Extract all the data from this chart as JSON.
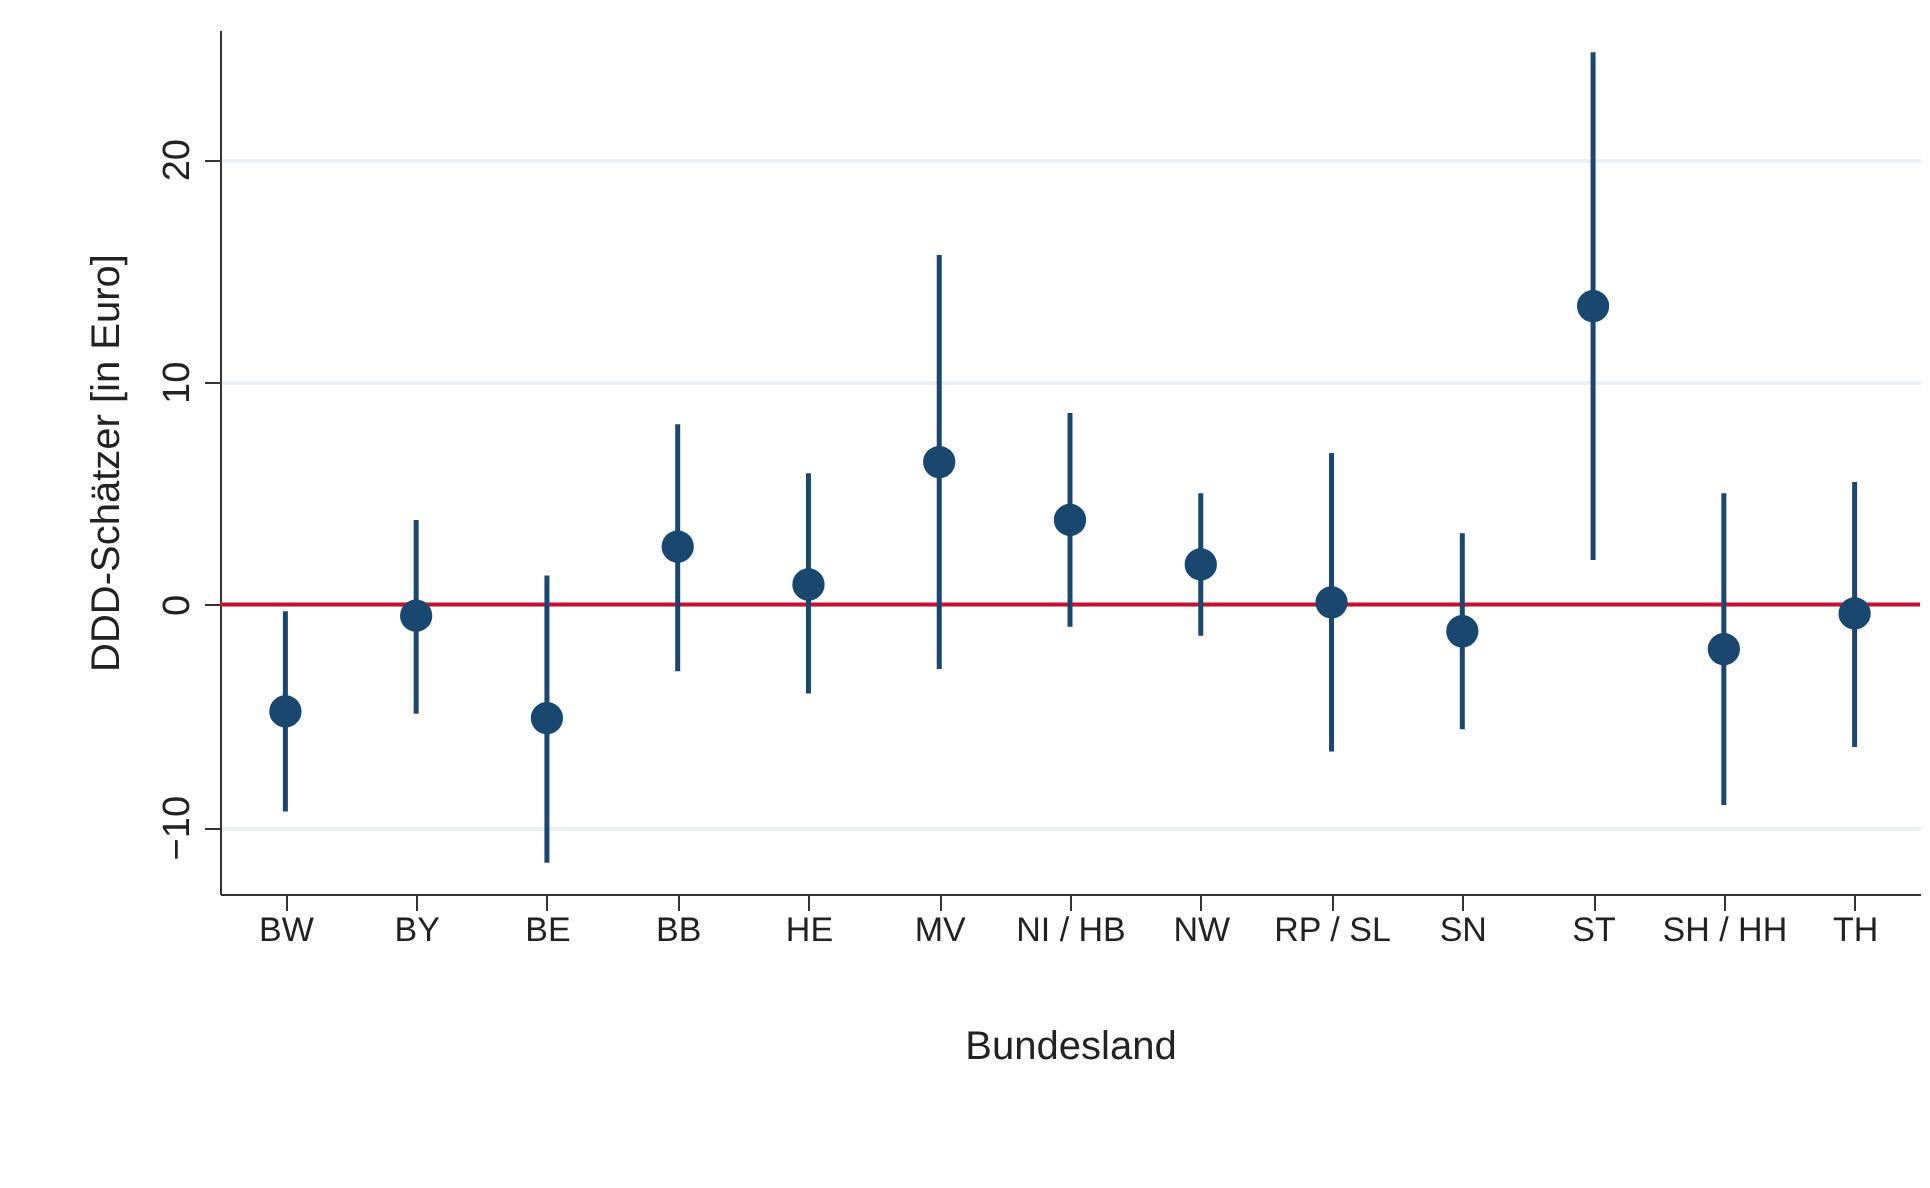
{
  "chart_data": {
    "type": "scatter",
    "xlabel": "Bundesland",
    "ylabel": "DDD-Schätzer [in Euro]",
    "categories": [
      "BW",
      "BY",
      "BE",
      "BB",
      "HE",
      "MV",
      "NI / HB",
      "NW",
      "RP / SL",
      "SN",
      "ST",
      "SH / HH",
      "TH"
    ],
    "series": [
      {
        "color": "#1a476f",
        "values": [
          -4.8,
          -0.5,
          -5.1,
          2.6,
          0.9,
          6.4,
          3.8,
          1.8,
          0.1,
          -1.2,
          13.4,
          -2.0,
          -0.4
        ],
        "errors": [
          [
            -9.3,
            -0.3
          ],
          [
            -4.9,
            3.8
          ],
          [
            -11.6,
            1.3
          ],
          [
            -3.0,
            8.1
          ],
          [
            -4.0,
            5.9
          ],
          [
            -2.9,
            15.7
          ],
          [
            -1.0,
            8.6
          ],
          [
            -1.4,
            5.0
          ],
          [
            -6.6,
            6.8
          ],
          [
            -5.6,
            3.2
          ],
          [
            2.0,
            24.8
          ],
          [
            -9.0,
            5.0
          ],
          [
            -6.4,
            5.5
          ]
        ]
      }
    ],
    "ylim": [
      -13,
      25.8
    ],
    "yticks": [
      -10,
      0,
      10,
      20
    ],
    "grid": "y",
    "marker": "circle",
    "ref_lines": [
      {
        "axis": "y",
        "value": 0,
        "color": "#c8102e"
      }
    ]
  }
}
